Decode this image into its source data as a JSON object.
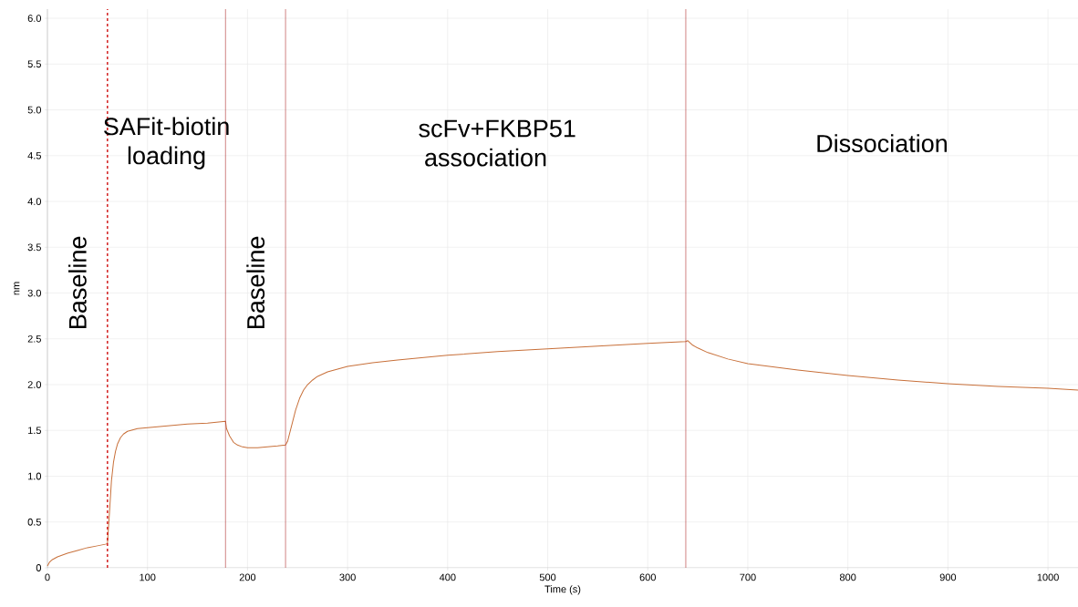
{
  "chart_data": {
    "type": "line",
    "xlabel": "Time (s)",
    "ylabel": "nm",
    "xlim": [
      0,
      1030
    ],
    "ylim": [
      0,
      6.1
    ],
    "xticks": [
      0,
      100,
      200,
      300,
      400,
      500,
      600,
      700,
      800,
      900,
      1000
    ],
    "yticks": [
      0,
      {
        "value": 0.5,
        "label": "0.5"
      },
      {
        "value": 1,
        "label": "1.0"
      },
      {
        "value": 1.5,
        "label": "1.5"
      },
      {
        "value": 2,
        "label": "2.0"
      },
      {
        "value": 2.5,
        "label": "2.5"
      },
      {
        "value": 3,
        "label": "3.0"
      },
      {
        "value": 3.5,
        "label": "3.5"
      },
      {
        "value": 4,
        "label": "4.0"
      },
      {
        "value": 4.5,
        "label": "4.5"
      },
      {
        "value": 5,
        "label": "5.0"
      },
      {
        "value": 5.5,
        "label": "5.5"
      },
      {
        "value": 6,
        "label": "6.0"
      }
    ],
    "grid": true,
    "marker": "none",
    "line_style": "solid",
    "x": [
      0,
      2,
      5,
      10,
      20,
      30,
      40,
      50,
      59,
      60,
      62,
      64,
      66,
      68,
      70,
      73,
      76,
      80,
      90,
      100,
      120,
      140,
      160,
      178,
      179,
      182,
      186,
      190,
      195,
      200,
      210,
      220,
      230,
      238,
      240,
      244,
      248,
      252,
      256,
      260,
      265,
      270,
      280,
      290,
      300,
      325,
      350,
      400,
      450,
      500,
      550,
      600,
      638,
      640,
      645,
      650,
      660,
      680,
      700,
      750,
      800,
      850,
      900,
      950,
      1000,
      1030
    ],
    "series": [
      {
        "color": "#c8703a",
        "values": [
          0.02,
          0.06,
          0.09,
          0.12,
          0.16,
          0.19,
          0.22,
          0.24,
          0.26,
          0.27,
          0.6,
          0.95,
          1.15,
          1.27,
          1.35,
          1.42,
          1.46,
          1.49,
          1.52,
          1.53,
          1.55,
          1.57,
          1.58,
          1.6,
          1.52,
          1.44,
          1.37,
          1.34,
          1.32,
          1.31,
          1.31,
          1.32,
          1.33,
          1.34,
          1.38,
          1.55,
          1.72,
          1.85,
          1.94,
          2.0,
          2.05,
          2.09,
          2.14,
          2.17,
          2.2,
          2.24,
          2.27,
          2.32,
          2.36,
          2.39,
          2.42,
          2.45,
          2.47,
          2.48,
          2.43,
          2.4,
          2.35,
          2.28,
          2.23,
          2.16,
          2.1,
          2.05,
          2.01,
          1.98,
          1.96,
          1.94
        ]
      }
    ],
    "ref_lines": [
      {
        "axis": "x",
        "value": 60,
        "color": "#d01010",
        "line_style": "dashed"
      },
      {
        "axis": "x",
        "value": 178,
        "color": "#b03030",
        "line_style": "solid"
      },
      {
        "axis": "x",
        "value": 238,
        "color": "#b03030",
        "line_style": "solid"
      },
      {
        "axis": "x",
        "value": 638,
        "color": "#b03030",
        "line_style": "solid"
      }
    ],
    "annotations": [
      "Baseline",
      "SAFit-biotin loading",
      "Baseline",
      "scFv+FKBP51 association",
      "Dissociation"
    ]
  }
}
